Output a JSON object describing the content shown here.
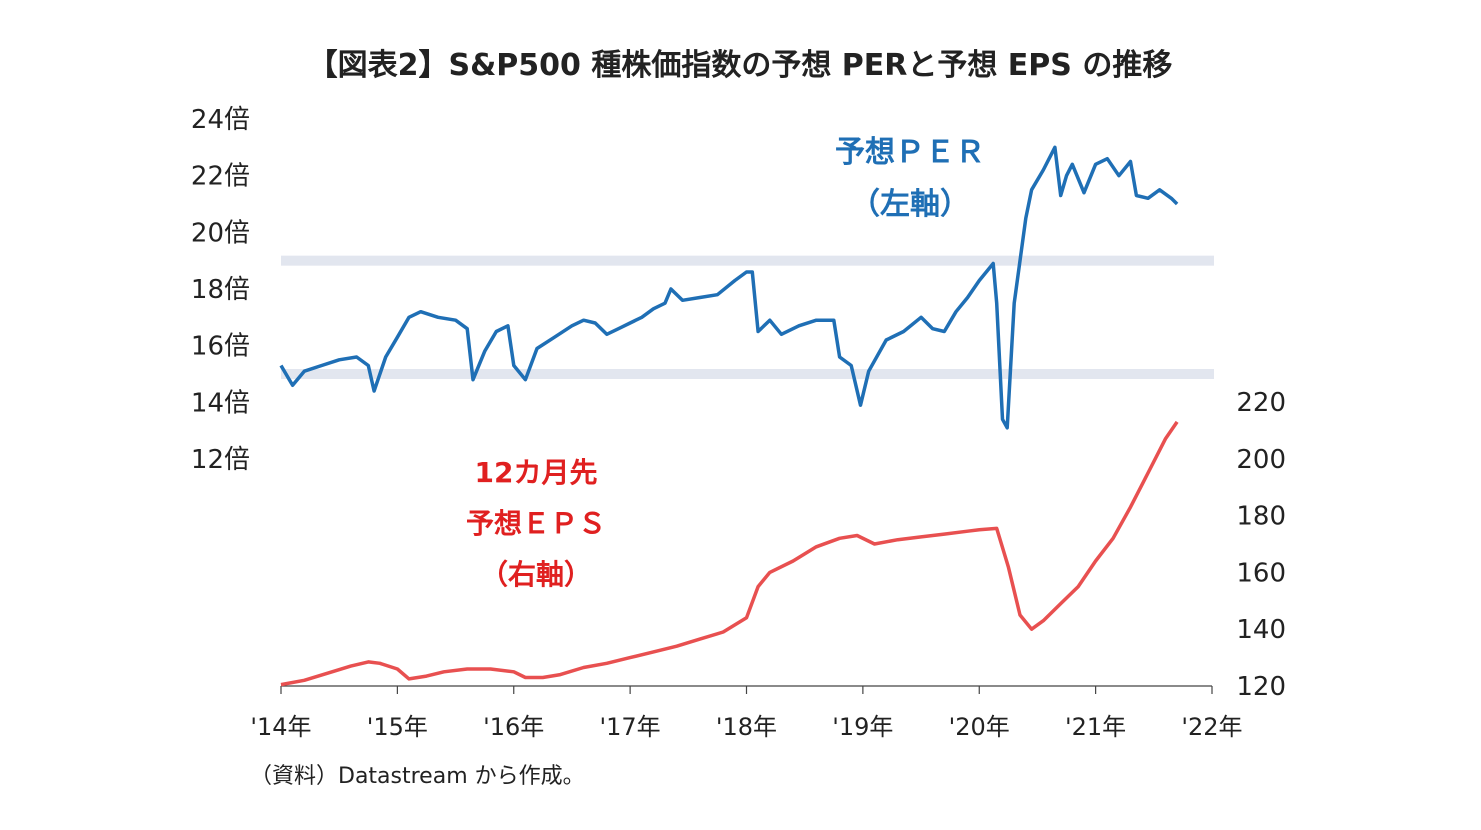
{
  "title": "【図表2】S&P500 種株価指数の予想 PERと予想 EPS の推移",
  "source_note": "（資料）Datastream から作成。",
  "annotations": {
    "per": [
      "予想ＰＥＲ",
      "（左軸）"
    ],
    "eps": [
      "12カ月先",
      "予想ＥＰＳ",
      "（右軸）"
    ]
  },
  "colors": {
    "per": "#1f6fb5",
    "eps": "#e85050",
    "band": "#e2e6ef",
    "axis": "#444444"
  },
  "chart_data": {
    "type": "line",
    "x_ticks": [
      "'14年",
      "'15年",
      "'16年",
      "'17年",
      "'18年",
      "'19年",
      "'20年",
      "'21年",
      "'22年"
    ],
    "xlim": [
      2014,
      2022
    ],
    "left_axis": {
      "ticks": [
        "24倍",
        "22倍",
        "20倍",
        "18倍",
        "16倍",
        "14倍",
        "12倍"
      ],
      "ylim": [
        12,
        24
      ]
    },
    "right_axis": {
      "ticks": [
        "220",
        "200",
        "180",
        "160",
        "140",
        "120"
      ],
      "ylim": [
        120,
        220
      ]
    },
    "reference_bands": [
      15,
      19
    ],
    "series": [
      {
        "axis": "left",
        "points": [
          [
            2014.0,
            15.3
          ],
          [
            2014.1,
            14.6
          ],
          [
            2014.2,
            15.1
          ],
          [
            2014.35,
            15.3
          ],
          [
            2014.5,
            15.5
          ],
          [
            2014.65,
            15.6
          ],
          [
            2014.75,
            15.3
          ],
          [
            2014.8,
            14.4
          ],
          [
            2014.9,
            15.6
          ],
          [
            2015.0,
            16.3
          ],
          [
            2015.1,
            17.0
          ],
          [
            2015.2,
            17.2
          ],
          [
            2015.35,
            17.0
          ],
          [
            2015.5,
            16.9
          ],
          [
            2015.6,
            16.6
          ],
          [
            2015.65,
            14.8
          ],
          [
            2015.75,
            15.8
          ],
          [
            2015.85,
            16.5
          ],
          [
            2015.95,
            16.7
          ],
          [
            2016.0,
            15.3
          ],
          [
            2016.1,
            14.8
          ],
          [
            2016.2,
            15.9
          ],
          [
            2016.35,
            16.3
          ],
          [
            2016.5,
            16.7
          ],
          [
            2016.6,
            16.9
          ],
          [
            2016.7,
            16.8
          ],
          [
            2016.8,
            16.4
          ],
          [
            2016.9,
            16.6
          ],
          [
            2017.0,
            16.8
          ],
          [
            2017.1,
            17.0
          ],
          [
            2017.2,
            17.3
          ],
          [
            2017.3,
            17.5
          ],
          [
            2017.35,
            18.0
          ],
          [
            2017.45,
            17.6
          ],
          [
            2017.6,
            17.7
          ],
          [
            2017.75,
            17.8
          ],
          [
            2017.9,
            18.3
          ],
          [
            2018.0,
            18.6
          ],
          [
            2018.05,
            18.6
          ],
          [
            2018.1,
            16.5
          ],
          [
            2018.2,
            16.9
          ],
          [
            2018.3,
            16.4
          ],
          [
            2018.45,
            16.7
          ],
          [
            2018.6,
            16.9
          ],
          [
            2018.75,
            16.9
          ],
          [
            2018.8,
            15.6
          ],
          [
            2018.9,
            15.3
          ],
          [
            2018.98,
            13.9
          ],
          [
            2019.05,
            15.1
          ],
          [
            2019.2,
            16.2
          ],
          [
            2019.35,
            16.5
          ],
          [
            2019.5,
            17.0
          ],
          [
            2019.6,
            16.6
          ],
          [
            2019.7,
            16.5
          ],
          [
            2019.8,
            17.2
          ],
          [
            2019.9,
            17.7
          ],
          [
            2020.0,
            18.3
          ],
          [
            2020.12,
            18.9
          ],
          [
            2020.15,
            17.5
          ],
          [
            2020.2,
            13.4
          ],
          [
            2020.24,
            13.1
          ],
          [
            2020.3,
            17.5
          ],
          [
            2020.4,
            20.5
          ],
          [
            2020.45,
            21.5
          ],
          [
            2020.55,
            22.2
          ],
          [
            2020.65,
            23.0
          ],
          [
            2020.7,
            21.3
          ],
          [
            2020.75,
            22.0
          ],
          [
            2020.8,
            22.4
          ],
          [
            2020.9,
            21.4
          ],
          [
            2021.0,
            22.4
          ],
          [
            2021.1,
            22.6
          ],
          [
            2021.2,
            22.0
          ],
          [
            2021.3,
            22.5
          ],
          [
            2021.35,
            21.3
          ],
          [
            2021.45,
            21.2
          ],
          [
            2021.55,
            21.5
          ],
          [
            2021.65,
            21.2
          ],
          [
            2021.7,
            21.0
          ]
        ]
      },
      {
        "axis": "right",
        "points": [
          [
            2014.0,
            120.5
          ],
          [
            2014.2,
            122
          ],
          [
            2014.4,
            124.5
          ],
          [
            2014.6,
            127
          ],
          [
            2014.75,
            128.5
          ],
          [
            2014.85,
            128
          ],
          [
            2015.0,
            126
          ],
          [
            2015.1,
            122.5
          ],
          [
            2015.25,
            123.5
          ],
          [
            2015.4,
            125
          ],
          [
            2015.6,
            126
          ],
          [
            2015.8,
            126
          ],
          [
            2016.0,
            125
          ],
          [
            2016.1,
            123
          ],
          [
            2016.25,
            123
          ],
          [
            2016.4,
            124
          ],
          [
            2016.6,
            126.5
          ],
          [
            2016.8,
            128
          ],
          [
            2017.0,
            130
          ],
          [
            2017.2,
            132
          ],
          [
            2017.4,
            134
          ],
          [
            2017.6,
            136.5
          ],
          [
            2017.8,
            139
          ],
          [
            2018.0,
            144
          ],
          [
            2018.1,
            155
          ],
          [
            2018.2,
            160
          ],
          [
            2018.4,
            164
          ],
          [
            2018.6,
            169
          ],
          [
            2018.8,
            172
          ],
          [
            2018.95,
            173
          ],
          [
            2019.1,
            170
          ],
          [
            2019.3,
            171.5
          ],
          [
            2019.5,
            172.5
          ],
          [
            2019.7,
            173.5
          ],
          [
            2019.9,
            174.5
          ],
          [
            2020.0,
            175
          ],
          [
            2020.15,
            175.5
          ],
          [
            2020.25,
            162
          ],
          [
            2020.35,
            145
          ],
          [
            2020.45,
            140
          ],
          [
            2020.55,
            143
          ],
          [
            2020.7,
            149
          ],
          [
            2020.85,
            155
          ],
          [
            2021.0,
            164
          ],
          [
            2021.15,
            172
          ],
          [
            2021.3,
            183
          ],
          [
            2021.45,
            195
          ],
          [
            2021.6,
            207
          ],
          [
            2021.7,
            213
          ]
        ]
      }
    ]
  }
}
